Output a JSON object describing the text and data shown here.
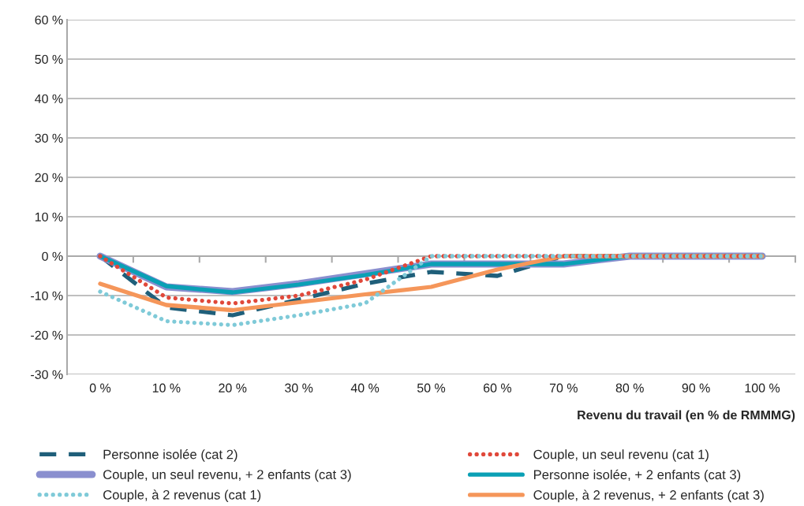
{
  "chart_data": {
    "type": "line",
    "xlabel": "Revenu du travail (en % de RMMMG)",
    "categories": [
      "0 %",
      "10 %",
      "20 %",
      "30 %",
      "40 %",
      "50 %",
      "60 %",
      "70 %",
      "80 %",
      "90 %",
      "100 %"
    ],
    "series": [
      {
        "name": "Personne isolée (cat 2)",
        "color": "#1f5f7a",
        "line_style": "dashed",
        "values": [
          0,
          -13,
          -15,
          -11,
          -7,
          -4,
          -5,
          0,
          0,
          0,
          0
        ]
      },
      {
        "name": "Couple, un seul revenu (cat 1)",
        "color": "#e0483a",
        "line_style": "dotted",
        "values": [
          0,
          -10.5,
          -12,
          -10,
          -6,
          0,
          0,
          0,
          0,
          0,
          0
        ]
      },
      {
        "name": "Couple, un seul revenu, + 2 enfants (cat 3)",
        "color": "#8a8fcf",
        "line_style": "solid",
        "values": [
          0,
          -7.8,
          -9,
          -7,
          -4.5,
          -2,
          -2,
          -2,
          0,
          0,
          0
        ]
      },
      {
        "name": "Personne isolée, + 2 enfants (cat 3)",
        "color": "#0aa0b5",
        "line_style": "solid",
        "values": [
          0,
          -7.6,
          -9.2,
          -7.2,
          -4.8,
          -2,
          -2,
          -2,
          0,
          0,
          0
        ]
      },
      {
        "name": "Couple, à 2 revenus (cat 1)",
        "color": "#7fcad8",
        "line_style": "dotted",
        "values": [
          -9,
          -16.5,
          -17.5,
          -15,
          -12,
          0,
          0,
          0,
          0,
          0,
          0
        ]
      },
      {
        "name": "Couple, à 2 revenus, + 2 enfants (cat 3)",
        "color": "#f5965a",
        "line_style": "solid",
        "values": [
          -7,
          -12.4,
          -13.7,
          -11.7,
          -9.7,
          -7.8,
          -3.4,
          0,
          0,
          0,
          0
        ]
      }
    ],
    "ylim": [
      -30,
      60
    ],
    "yticks": [
      {
        "value": -30,
        "label": "-30 %"
      },
      {
        "value": -20,
        "label": "-20 %"
      },
      {
        "value": -10,
        "label": "-10 %"
      },
      {
        "value": 0,
        "label": "0 %"
      },
      {
        "value": 10,
        "label": "10 %"
      },
      {
        "value": 20,
        "label": "20 %"
      },
      {
        "value": 30,
        "label": "30 %"
      },
      {
        "value": 40,
        "label": "40 %"
      },
      {
        "value": 50,
        "label": "50 %"
      },
      {
        "value": 60,
        "label": "60 %"
      }
    ],
    "grid": "y",
    "legend": "bottom",
    "marker": "none"
  }
}
